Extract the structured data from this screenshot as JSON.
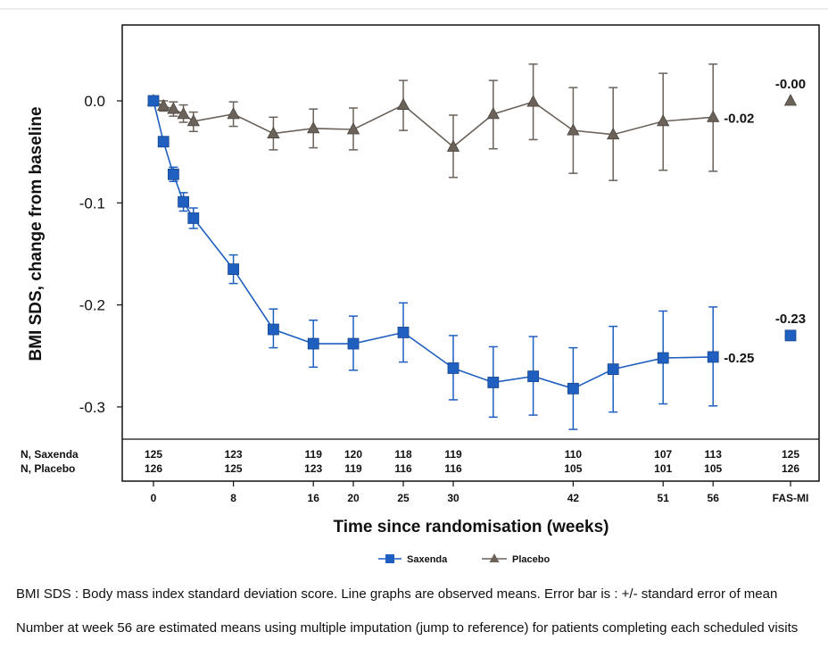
{
  "chart_data": {
    "type": "line",
    "ylabel": "BMI SDS, change from baseline",
    "xlabel": "Time since randomisation (weeks)",
    "ylim": [
      -0.345,
      0.075
    ],
    "yticks": [
      0.0,
      -0.1,
      -0.2,
      -0.3
    ],
    "ytick_labels": [
      "0.0",
      "-0.1",
      "-0.2",
      "-0.3"
    ],
    "xticks": [
      0,
      8,
      16,
      20,
      25,
      30,
      42,
      51,
      56,
      "FAS-MI"
    ],
    "xtick_labels": [
      "0",
      "8",
      "16",
      "20",
      "25",
      "30",
      "42",
      "51",
      "56",
      "FAS-MI"
    ],
    "grid": false,
    "legend_position": "bottom-center",
    "series": [
      {
        "name": "Saxenda",
        "color": "#1f5fbf",
        "marker": "square",
        "points": [
          {
            "x": 0,
            "y": 0.0,
            "lo": 0.0,
            "hi": 0.0
          },
          {
            "x": 1,
            "y": -0.04,
            "lo": -0.044,
            "hi": -0.036
          },
          {
            "x": 2,
            "y": -0.072,
            "lo": -0.079,
            "hi": -0.065
          },
          {
            "x": 3,
            "y": -0.099,
            "lo": -0.108,
            "hi": -0.09
          },
          {
            "x": 4,
            "y": -0.115,
            "lo": -0.125,
            "hi": -0.105
          },
          {
            "x": 8,
            "y": -0.165,
            "lo": -0.179,
            "hi": -0.151
          },
          {
            "x": 12,
            "y": -0.224,
            "lo": -0.242,
            "hi": -0.204
          },
          {
            "x": 16,
            "y": -0.238,
            "lo": -0.261,
            "hi": -0.215
          },
          {
            "x": 20,
            "y": -0.238,
            "lo": -0.264,
            "hi": -0.211
          },
          {
            "x": 25,
            "y": -0.227,
            "lo": -0.256,
            "hi": -0.198
          },
          {
            "x": 30,
            "y": -0.262,
            "lo": -0.293,
            "hi": -0.23
          },
          {
            "x": 34,
            "y": -0.276,
            "lo": -0.31,
            "hi": -0.241
          },
          {
            "x": 38,
            "y": -0.27,
            "lo": -0.308,
            "hi": -0.231
          },
          {
            "x": 42,
            "y": -0.282,
            "lo": -0.322,
            "hi": -0.242
          },
          {
            "x": 46,
            "y": -0.263,
            "lo": -0.305,
            "hi": -0.221
          },
          {
            "x": 51,
            "y": -0.252,
            "lo": -0.297,
            "hi": -0.206
          },
          {
            "x": 56,
            "y": -0.251,
            "lo": -0.299,
            "hi": -0.202
          }
        ],
        "end_label": "-0.25",
        "fas_mi": {
          "value": -0.23,
          "label": "-0.23"
        }
      },
      {
        "name": "Placebo",
        "color": "#6b625a",
        "marker": "triangle",
        "points": [
          {
            "x": 0,
            "y": 0.0,
            "lo": 0.0,
            "hi": 0.0
          },
          {
            "x": 1,
            "y": -0.005,
            "lo": -0.01,
            "hi": 0.0
          },
          {
            "x": 2,
            "y": -0.008,
            "lo": -0.015,
            "hi": -0.001
          },
          {
            "x": 3,
            "y": -0.013,
            "lo": -0.021,
            "hi": -0.004
          },
          {
            "x": 4,
            "y": -0.02,
            "lo": -0.03,
            "hi": -0.011
          },
          {
            "x": 8,
            "y": -0.013,
            "lo": -0.025,
            "hi": -0.001
          },
          {
            "x": 12,
            "y": -0.032,
            "lo": -0.048,
            "hi": -0.016
          },
          {
            "x": 16,
            "y": -0.027,
            "lo": -0.046,
            "hi": -0.008
          },
          {
            "x": 20,
            "y": -0.028,
            "lo": -0.048,
            "hi": -0.007
          },
          {
            "x": 25,
            "y": -0.004,
            "lo": -0.029,
            "hi": 0.02
          },
          {
            "x": 30,
            "y": -0.045,
            "lo": -0.075,
            "hi": -0.014
          },
          {
            "x": 34,
            "y": -0.013,
            "lo": -0.047,
            "hi": 0.02
          },
          {
            "x": 38,
            "y": -0.001,
            "lo": -0.038,
            "hi": 0.036
          },
          {
            "x": 42,
            "y": -0.029,
            "lo": -0.071,
            "hi": 0.013
          },
          {
            "x": 46,
            "y": -0.033,
            "lo": -0.078,
            "hi": 0.013
          },
          {
            "x": 51,
            "y": -0.02,
            "lo": -0.068,
            "hi": 0.027
          },
          {
            "x": 56,
            "y": -0.016,
            "lo": -0.069,
            "hi": 0.036
          }
        ],
        "end_label": "-0.02",
        "fas_mi": {
          "value": -0.0,
          "label": "-0.00"
        }
      }
    ],
    "n_table": {
      "rows": [
        {
          "label": "N, Saxenda",
          "values": [
            {
              "x": 0,
              "v": "125"
            },
            {
              "x": 8,
              "v": "123"
            },
            {
              "x": 16,
              "v": "119"
            },
            {
              "x": 20,
              "v": "120"
            },
            {
              "x": 25,
              "v": "118"
            },
            {
              "x": 30,
              "v": "119"
            },
            {
              "x": 42,
              "v": "110"
            },
            {
              "x": 51,
              "v": "107"
            },
            {
              "x": 56,
              "v": "113"
            },
            {
              "x": "FAS-MI",
              "v": "125"
            }
          ]
        },
        {
          "label": "N, Placebo",
          "values": [
            {
              "x": 0,
              "v": "126"
            },
            {
              "x": 8,
              "v": "125"
            },
            {
              "x": 16,
              "v": "123"
            },
            {
              "x": 20,
              "v": "119"
            },
            {
              "x": 25,
              "v": "116"
            },
            {
              "x": 30,
              "v": "116"
            },
            {
              "x": 42,
              "v": "105"
            },
            {
              "x": 51,
              "v": "101"
            },
            {
              "x": 56,
              "v": "105"
            },
            {
              "x": "FAS-MI",
              "v": "126"
            }
          ]
        }
      ]
    }
  },
  "footnotes": {
    "line1": "BMI SDS : Body mass index standard deviation score. Line graphs are observed means. Error bar is : +/- standard error of mean",
    "line2": "Number at week 56 are estimated means using multiple imputation (jump to reference) for patients completing each scheduled visits"
  }
}
